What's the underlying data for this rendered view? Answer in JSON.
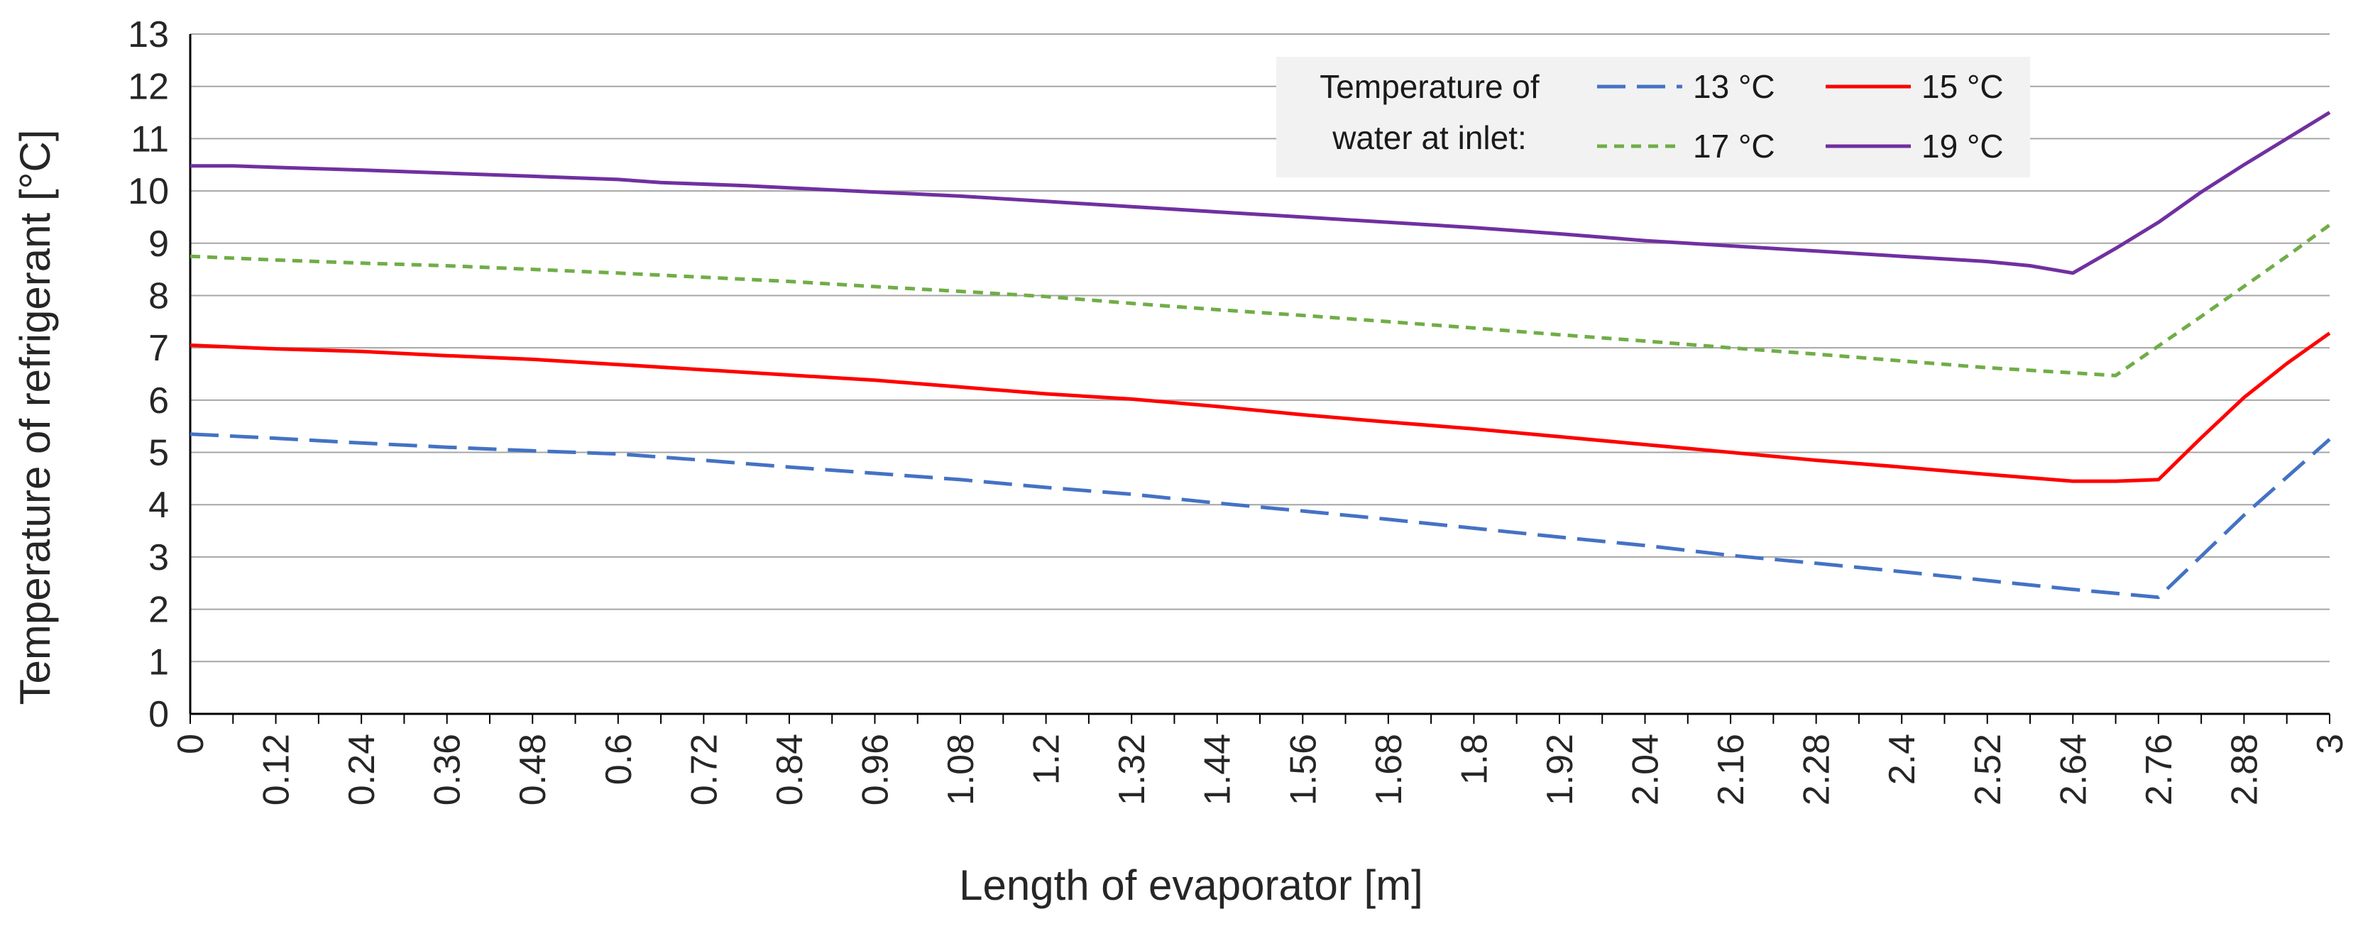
{
  "chart_data": {
    "type": "line",
    "title": "",
    "xlabel": "Length of evaporator [m]",
    "ylabel": "Temperature of refrigerant [°C]",
    "xlim": [
      0,
      3
    ],
    "ylim": [
      0,
      13
    ],
    "yticks": [
      0,
      1,
      2,
      3,
      4,
      5,
      6,
      7,
      8,
      9,
      10,
      11,
      12,
      13
    ],
    "xticks": [
      "0",
      "0.12",
      "0.24",
      "0.36",
      "0.48",
      "0.6",
      "0.72",
      "0.84",
      "0.96",
      "1.08",
      "1.2",
      "1.32",
      "1.44",
      "1.56",
      "1.68",
      "1.8",
      "1.92",
      "2.04",
      "2.16",
      "2.28",
      "2.4",
      "2.52",
      "2.64",
      "2.76",
      "2.88",
      "3"
    ],
    "grid": "horizontal",
    "legend": {
      "position": "top-right",
      "title_line1": "Temperature of",
      "title_line2": "water at inlet:"
    },
    "series": [
      {
        "name": "13 °C",
        "color": "#4472C4",
        "style": "dashed",
        "x": [
          0,
          0.12,
          0.24,
          0.36,
          0.48,
          0.6,
          0.72,
          0.84,
          0.96,
          1.08,
          1.2,
          1.32,
          1.44,
          1.56,
          1.68,
          1.8,
          1.92,
          2.04,
          2.16,
          2.28,
          2.4,
          2.52,
          2.64,
          2.76,
          2.88,
          3.0
        ],
        "y": [
          5.35,
          5.27,
          5.18,
          5.1,
          5.03,
          4.97,
          4.85,
          4.72,
          4.6,
          4.48,
          4.33,
          4.2,
          4.03,
          3.88,
          3.72,
          3.55,
          3.38,
          3.22,
          3.03,
          2.88,
          2.72,
          2.55,
          2.38,
          2.23,
          3.8,
          5.25
        ]
      },
      {
        "name": "15 °C",
        "color": "#FF0000",
        "style": "solid",
        "x": [
          0,
          0.12,
          0.24,
          0.36,
          0.48,
          0.6,
          0.72,
          0.84,
          0.96,
          1.08,
          1.2,
          1.32,
          1.44,
          1.56,
          1.68,
          1.8,
          1.92,
          2.04,
          2.16,
          2.28,
          2.4,
          2.52,
          2.64,
          2.7,
          2.76,
          2.82,
          2.88,
          2.94,
          3.0
        ],
        "y": [
          7.05,
          6.98,
          6.93,
          6.85,
          6.78,
          6.68,
          6.58,
          6.48,
          6.38,
          6.25,
          6.12,
          6.02,
          5.88,
          5.72,
          5.58,
          5.45,
          5.3,
          5.15,
          5.0,
          4.85,
          4.72,
          4.58,
          4.45,
          4.45,
          4.48,
          5.28,
          6.05,
          6.7,
          7.28
        ]
      },
      {
        "name": "17 °C",
        "color": "#70AD47",
        "style": "dotted",
        "x": [
          0,
          0.12,
          0.24,
          0.36,
          0.48,
          0.6,
          0.72,
          0.84,
          0.96,
          1.08,
          1.2,
          1.32,
          1.44,
          1.56,
          1.68,
          1.8,
          1.92,
          2.04,
          2.16,
          2.28,
          2.4,
          2.52,
          2.64,
          2.7,
          2.82,
          2.94,
          3.0
        ],
        "y": [
          8.75,
          8.68,
          8.62,
          8.57,
          8.5,
          8.43,
          8.35,
          8.27,
          8.17,
          8.08,
          7.98,
          7.85,
          7.73,
          7.62,
          7.5,
          7.38,
          7.25,
          7.13,
          7.0,
          6.88,
          6.75,
          6.62,
          6.52,
          6.47,
          7.6,
          8.75,
          9.35
        ]
      },
      {
        "name": "19 °C",
        "color": "#7030A0",
        "style": "solid",
        "x": [
          0,
          0.06,
          0.12,
          0.24,
          0.36,
          0.48,
          0.6,
          0.66,
          0.78,
          0.84,
          0.96,
          1.08,
          1.2,
          1.32,
          1.44,
          1.56,
          1.68,
          1.8,
          1.92,
          2.04,
          2.16,
          2.28,
          2.4,
          2.52,
          2.58,
          2.64,
          2.7,
          2.76,
          2.82,
          2.88,
          2.94,
          3.0
        ],
        "y": [
          10.48,
          10.48,
          10.45,
          10.4,
          10.34,
          10.28,
          10.22,
          10.16,
          10.1,
          10.06,
          9.98,
          9.9,
          9.8,
          9.7,
          9.6,
          9.5,
          9.4,
          9.3,
          9.18,
          9.05,
          8.95,
          8.85,
          8.75,
          8.65,
          8.57,
          8.43,
          8.9,
          9.4,
          9.98,
          10.5,
          11.0,
          11.5
        ]
      }
    ]
  }
}
